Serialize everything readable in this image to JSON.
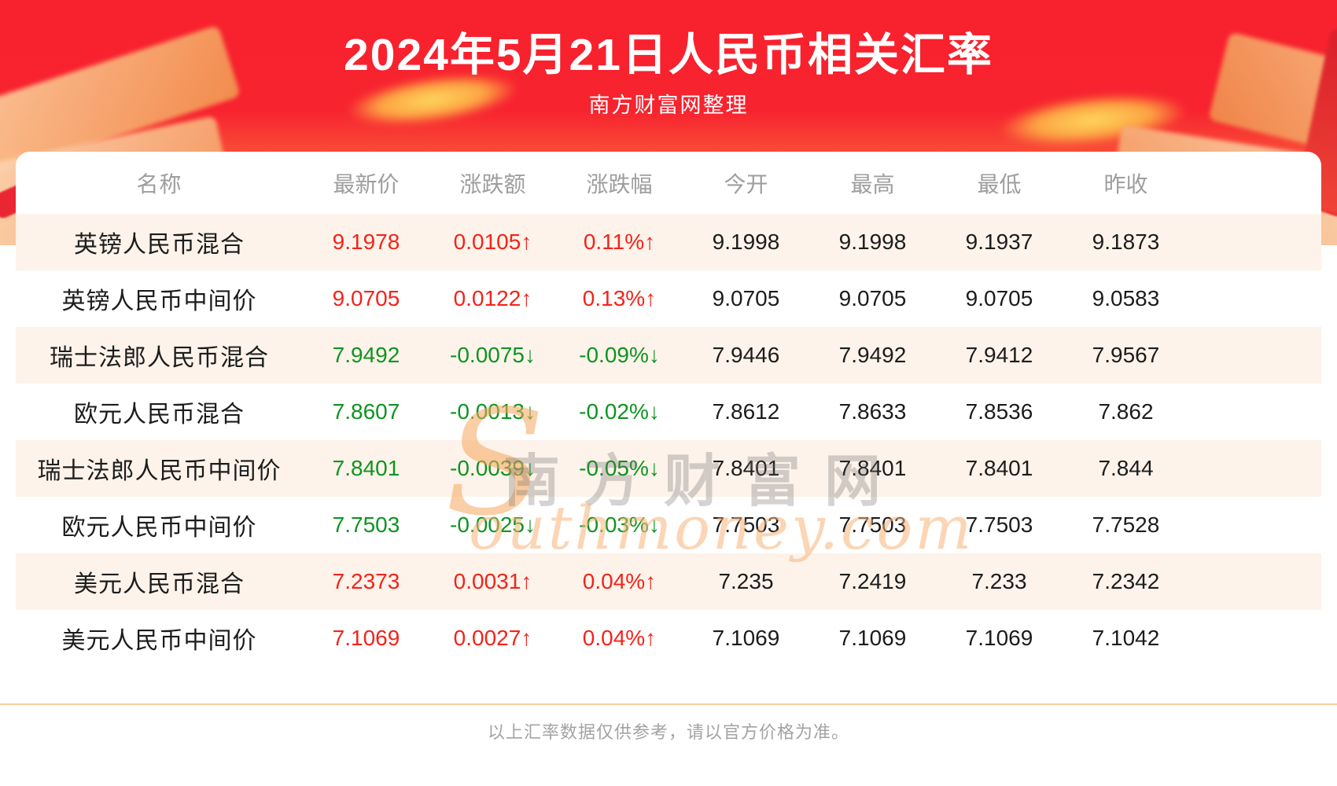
{
  "header": {
    "title": "2024年5月21日人民币相关汇率",
    "subtitle": "南方财富网整理"
  },
  "watermark": {
    "initial": "S",
    "cn": "南方财富网",
    "script": "outhmoney.com"
  },
  "footer": {
    "note": "以上汇率数据仅供参考，请以官方价格为准。"
  },
  "chart_data": {
    "type": "table",
    "title": "2024年5月21日人民币相关汇率",
    "subtitle": "南方财富网整理",
    "columns": [
      "名称",
      "最新价",
      "涨跌额",
      "涨跌幅",
      "今开",
      "最高",
      "最低",
      "昨收"
    ],
    "arrows": {
      "up": "↑",
      "down": "↓"
    },
    "colors": {
      "up": "#f3231a",
      "down": "#0e9420",
      "text": "#1c1c1c",
      "header": "#9e9e9e",
      "row_alt": "#fdf3ea"
    },
    "rows": [
      {
        "name": "英镑人民币混合",
        "last": "9.1978",
        "change": "0.0105",
        "change_pct": "0.11%",
        "open": "9.1998",
        "high": "9.1998",
        "low": "9.1937",
        "prev_close": "9.1873",
        "direction": "up"
      },
      {
        "name": "英镑人民币中间价",
        "last": "9.0705",
        "change": "0.0122",
        "change_pct": "0.13%",
        "open": "9.0705",
        "high": "9.0705",
        "low": "9.0705",
        "prev_close": "9.0583",
        "direction": "up"
      },
      {
        "name": "瑞士法郎人民币混合",
        "last": "7.9492",
        "change": "-0.0075",
        "change_pct": "-0.09%",
        "open": "7.9446",
        "high": "7.9492",
        "low": "7.9412",
        "prev_close": "7.9567",
        "direction": "down"
      },
      {
        "name": "欧元人民币混合",
        "last": "7.8607",
        "change": "-0.0013",
        "change_pct": "-0.02%",
        "open": "7.8612",
        "high": "7.8633",
        "low": "7.8536",
        "prev_close": "7.862",
        "direction": "down"
      },
      {
        "name": "瑞士法郎人民币中间价",
        "last": "7.8401",
        "change": "-0.0039",
        "change_pct": "-0.05%",
        "open": "7.8401",
        "high": "7.8401",
        "low": "7.8401",
        "prev_close": "7.844",
        "direction": "down"
      },
      {
        "name": "欧元人民币中间价",
        "last": "7.7503",
        "change": "-0.0025",
        "change_pct": "-0.03%",
        "open": "7.7503",
        "high": "7.7503",
        "low": "7.7503",
        "prev_close": "7.7528",
        "direction": "down"
      },
      {
        "name": "美元人民币混合",
        "last": "7.2373",
        "change": "0.0031",
        "change_pct": "0.04%",
        "open": "7.235",
        "high": "7.2419",
        "low": "7.233",
        "prev_close": "7.2342",
        "direction": "up"
      },
      {
        "name": "美元人民币中间价",
        "last": "7.1069",
        "change": "0.0027",
        "change_pct": "0.04%",
        "open": "7.1069",
        "high": "7.1069",
        "low": "7.1069",
        "prev_close": "7.1042",
        "direction": "up"
      }
    ]
  }
}
